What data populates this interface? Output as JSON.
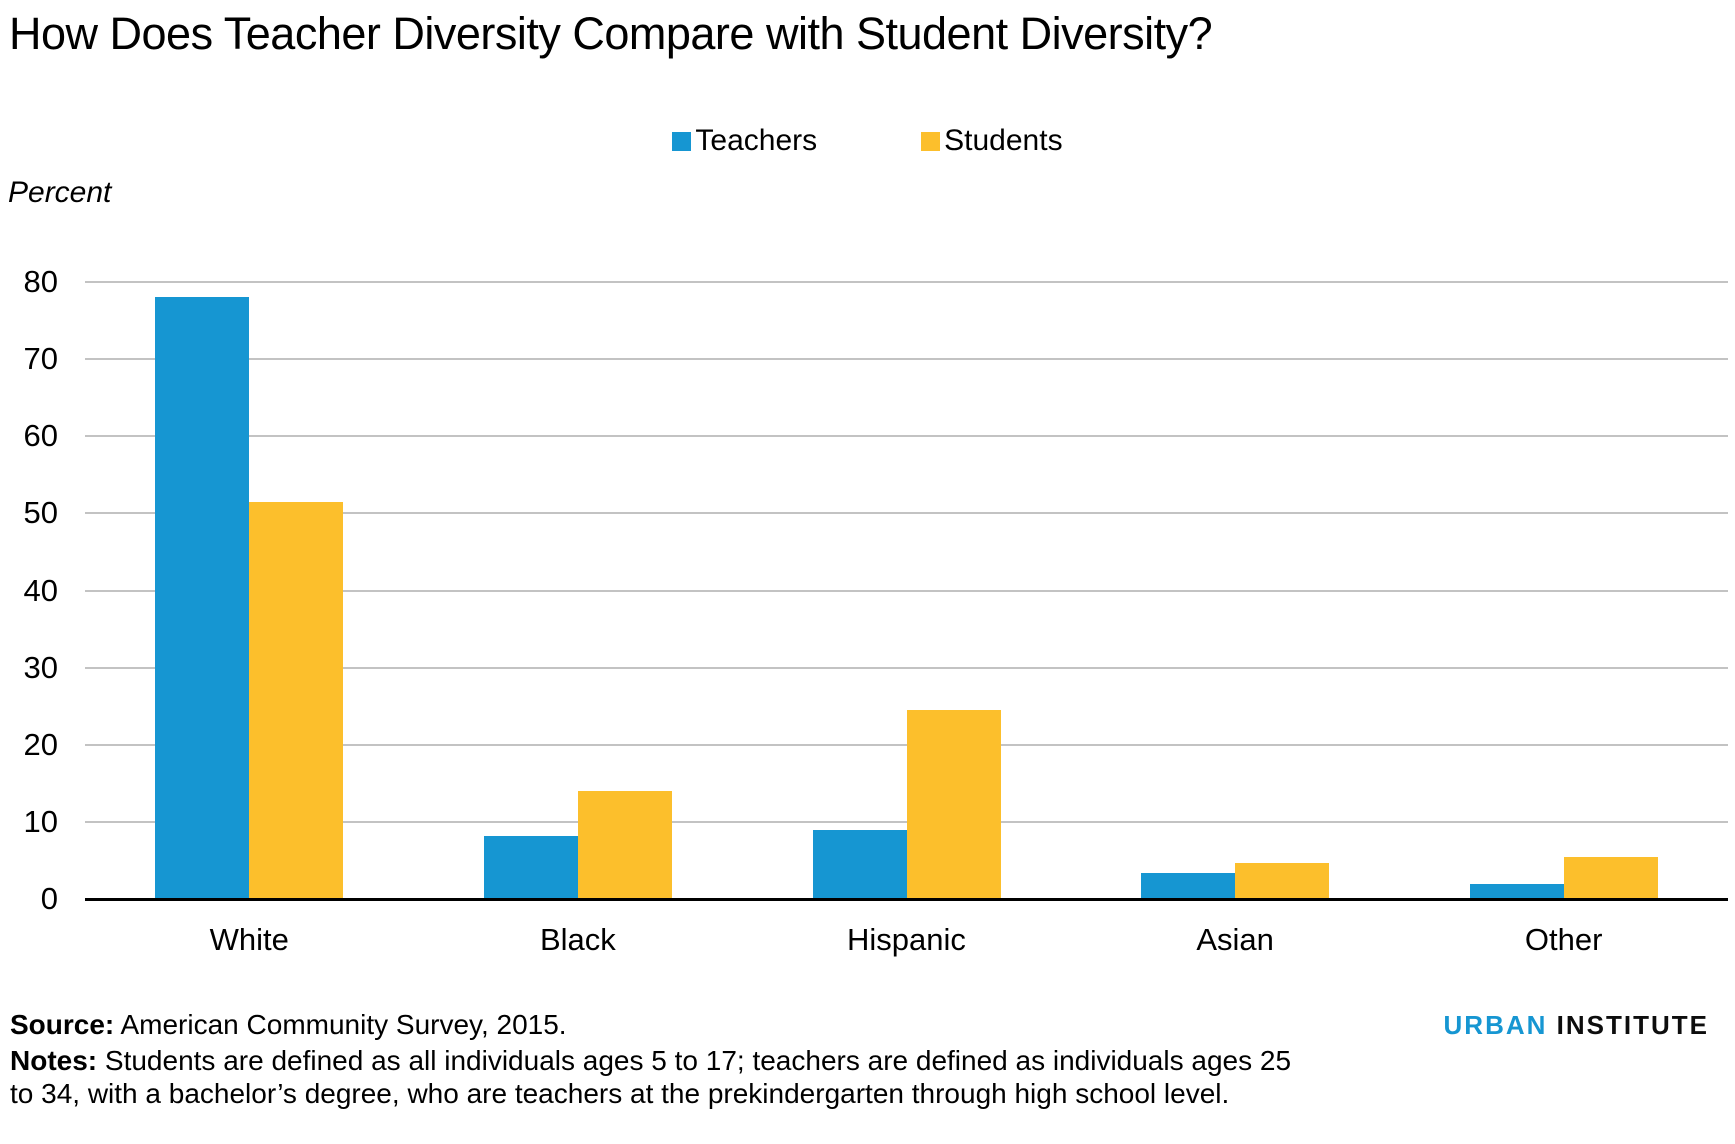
{
  "chart_data": {
    "type": "bar",
    "title": "How Does Teacher Diversity Compare with Student Diversity?",
    "ylabel": "Percent",
    "xlabel": "",
    "categories": [
      "White",
      "Black",
      "Hispanic",
      "Asian",
      "Other"
    ],
    "series": [
      {
        "name": "Teachers",
        "color": "#1696d2",
        "values": [
          78,
          8.2,
          9,
          3.4,
          2
        ]
      },
      {
        "name": "Students",
        "color": "#fcbf2c",
        "values": [
          51.5,
          14,
          24.5,
          4.7,
          5.5
        ]
      }
    ],
    "ylim": [
      0,
      80
    ],
    "ytick_step": 10,
    "ytick_labels": [
      "0",
      "10",
      "20",
      "30",
      "40",
      "50",
      "60",
      "70",
      "80"
    ],
    "grid": "horizontal",
    "gridline_color": "#c3c3c3",
    "axis_color": "#000000",
    "legend_position": "top-center"
  },
  "footer": {
    "source_label": "Source:",
    "source_text": " American Community Survey, 2015.",
    "notes_label": "Notes:",
    "notes_text": " Students are defined as all individuals ages 5 to 17; teachers are defined as individuals ages 25\nto 34, with a bachelor’s degree, who are teachers at the prekindergarten through high school level.",
    "logo": {
      "part1": "URBAN",
      "part2": "INSTITUTE",
      "color1": "#1696d2",
      "color2": "#0d0d0d"
    }
  }
}
